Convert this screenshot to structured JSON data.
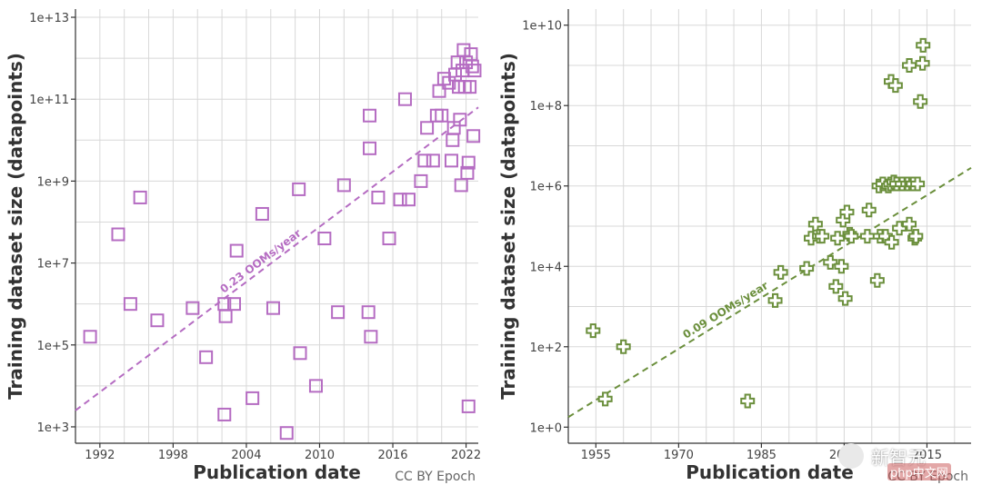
{
  "chart_data": [
    {
      "type": "scatter",
      "xlabel": "Publication date",
      "ylabel": "Training dataset size (datapoints)",
      "credit": "CC BY Epoch",
      "y_scale": "log",
      "xlim": [
        1990,
        2023
      ],
      "ylim_log10": [
        2.6,
        13.2
      ],
      "x_ticks": [
        1992,
        1998,
        2004,
        2010,
        2016,
        2022
      ],
      "y_ticks": [
        "1e+3",
        "1e+5",
        "1e+7",
        "1e+9",
        "1e+11",
        "1e+13"
      ],
      "y_tick_exponents": [
        3,
        5,
        7,
        9,
        11,
        13
      ],
      "grid": true,
      "marker": "square",
      "color": "#b56cc2",
      "trend": {
        "label": "0.23 OOMs/year",
        "start": [
          1990,
          3.4
        ],
        "end": [
          2023,
          10.8
        ]
      },
      "points_log10": [
        [
          1991.2,
          5.2
        ],
        [
          1993.5,
          7.7
        ],
        [
          1994.5,
          6.0
        ],
        [
          1995.3,
          8.6
        ],
        [
          1996.7,
          5.6
        ],
        [
          1999.6,
          5.9
        ],
        [
          2000.7,
          4.7
        ],
        [
          2002.2,
          6.0
        ],
        [
          2002.3,
          5.7
        ],
        [
          2002.2,
          3.3
        ],
        [
          2003.0,
          6.0
        ],
        [
          2003.2,
          7.3
        ],
        [
          2004.5,
          3.7
        ],
        [
          2005.3,
          8.2
        ],
        [
          2006.2,
          5.9
        ],
        [
          2007.3,
          2.85
        ],
        [
          2008.3,
          8.8
        ],
        [
          2008.4,
          4.8
        ],
        [
          2009.7,
          4.0
        ],
        [
          2010.4,
          7.6
        ],
        [
          2011.5,
          5.8
        ],
        [
          2012.0,
          8.9
        ],
        [
          2014.0,
          5.8
        ],
        [
          2014.2,
          5.2
        ],
        [
          2014.1,
          9.8
        ],
        [
          2014.1,
          10.6
        ],
        [
          2014.8,
          8.6
        ],
        [
          2015.7,
          7.6
        ],
        [
          2016.6,
          8.55
        ],
        [
          2017.0,
          11.0
        ],
        [
          2017.3,
          8.55
        ],
        [
          2018.3,
          9.0
        ],
        [
          2018.6,
          9.5
        ],
        [
          2018.8,
          10.3
        ],
        [
          2019.3,
          9.5
        ],
        [
          2019.6,
          10.6
        ],
        [
          2020.0,
          10.6
        ],
        [
          2019.8,
          11.2
        ],
        [
          2020.2,
          11.5
        ],
        [
          2020.6,
          11.4
        ],
        [
          2020.8,
          9.5
        ],
        [
          2020.9,
          10.0
        ],
        [
          2021.0,
          10.3
        ],
        [
          2021.1,
          11.6
        ],
        [
          2021.3,
          11.9
        ],
        [
          2021.4,
          11.3
        ],
        [
          2021.5,
          10.5
        ],
        [
          2021.6,
          8.9
        ],
        [
          2021.7,
          11.7
        ],
        [
          2021.8,
          12.2
        ],
        [
          2021.9,
          11.3
        ],
        [
          2022.0,
          11.9
        ],
        [
          2022.1,
          9.2
        ],
        [
          2022.2,
          9.45
        ],
        [
          2022.2,
          3.5
        ],
        [
          2022.3,
          11.3
        ],
        [
          2022.4,
          12.1
        ],
        [
          2022.5,
          11.8
        ],
        [
          2022.6,
          10.1
        ],
        [
          2022.7,
          11.7
        ]
      ]
    },
    {
      "type": "scatter",
      "xlabel": "Publication date",
      "ylabel": "Training dataset size (datapoints)",
      "credit": "CC BY Epoch",
      "y_scale": "log",
      "xlim": [
        1950,
        2023
      ],
      "ylim_log10": [
        -0.4,
        10.4
      ],
      "x_ticks": [
        1955,
        1970,
        1985,
        2000,
        2015
      ],
      "y_ticks": [
        "1e+0",
        "1e+2",
        "1e+4",
        "1e+6",
        "1e+8",
        "1e+10"
      ],
      "y_tick_exponents": [
        0,
        2,
        4,
        6,
        8,
        10
      ],
      "grid": true,
      "marker": "cross",
      "color": "#6b8f3c",
      "trend": {
        "label": "0.09 OOMs/year",
        "start": [
          1950,
          0.25
        ],
        "end": [
          2023,
          6.45
        ]
      },
      "points_log10": [
        [
          1954.5,
          2.4
        ],
        [
          1956.7,
          0.7
        ],
        [
          1960.0,
          2.0
        ],
        [
          1982.5,
          0.65
        ],
        [
          1987.5,
          3.15
        ],
        [
          1988.5,
          3.85
        ],
        [
          1993.2,
          3.95
        ],
        [
          1994.0,
          4.7
        ],
        [
          1994.8,
          5.05
        ],
        [
          1995.5,
          4.75
        ],
        [
          1996.0,
          4.75
        ],
        [
          1997.5,
          4.1
        ],
        [
          1998.5,
          3.5
        ],
        [
          1998.8,
          4.7
        ],
        [
          1999.5,
          4.0
        ],
        [
          1999.8,
          5.15
        ],
        [
          2000.2,
          3.2
        ],
        [
          2000.5,
          5.35
        ],
        [
          2001.0,
          4.8
        ],
        [
          2001.3,
          4.75
        ],
        [
          2004.5,
          5.4
        ],
        [
          2004.2,
          4.75
        ],
        [
          2006.0,
          3.65
        ],
        [
          2006.3,
          6.0
        ],
        [
          2006.5,
          4.75
        ],
        [
          2007.0,
          6.05
        ],
        [
          2007.5,
          4.75
        ],
        [
          2008.0,
          6.0
        ],
        [
          2008.4,
          6.05
        ],
        [
          2008.6,
          4.6
        ],
        [
          2009.0,
          6.1
        ],
        [
          2009.5,
          6.05
        ],
        [
          2010.0,
          4.95
        ],
        [
          2010.5,
          6.05
        ],
        [
          2011.5,
          6.05
        ],
        [
          2011.8,
          5.05
        ],
        [
          2012.2,
          6.05
        ],
        [
          2012.5,
          6.05
        ],
        [
          2012.8,
          4.7
        ],
        [
          2013.0,
          4.75
        ],
        [
          2013.3,
          6.05
        ],
        [
          2008.5,
          8.6
        ],
        [
          2009.3,
          8.5
        ],
        [
          2011.8,
          9.0
        ],
        [
          2013.8,
          8.1
        ],
        [
          2014.2,
          9.05
        ],
        [
          2014.3,
          9.5
        ]
      ]
    }
  ],
  "watermark": {
    "text": "新智元",
    "badge": "php中文网"
  }
}
